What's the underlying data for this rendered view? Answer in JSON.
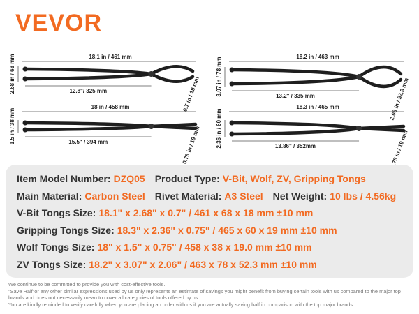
{
  "brand": "VEVOR",
  "tongs": [
    {
      "length": "18.1 in / 461 mm",
      "width": "2.68 in / 68 mm",
      "handle": "12.8\"/ 325 mm",
      "jaw": "0.7 in / 18 mm"
    },
    {
      "length": "18.2 in / 463 mm",
      "width": "3.07 in / 78 mm",
      "handle": "13.2\" / 335 mm",
      "jaw": "2.06 in / 52.3 mm"
    },
    {
      "length": "18 in / 458 mm",
      "width": "1.5 in / 38 mm",
      "handle": "15.5\" / 394 mm",
      "jaw": "0.75 in / 19 mm"
    },
    {
      "length": "18.3 in / 465 mm",
      "width": "2.36 in / 60 mm",
      "handle": "13.86\" / 352mm",
      "jaw": "0.75 in / 19 mm"
    }
  ],
  "specs": {
    "rows": [
      [
        {
          "label": "Item Model Number:",
          "value": "DZQ05"
        },
        {
          "label": "Product Type:",
          "value": "V-Bit, Wolf, ZV, Gripping Tongs"
        }
      ],
      [
        {
          "label": "Main Material:",
          "value": "Carbon Steel"
        },
        {
          "label": "Rivet Material:",
          "value": "A3 Steel"
        },
        {
          "label": "Net Weight:",
          "value": "10 lbs / 4.56kg"
        }
      ],
      [
        {
          "label": "V-Bit Tongs Size:",
          "value": "18.1\" x 2.68\" x 0.7\" / 461 x 68 x 18 mm ±10 mm"
        }
      ],
      [
        {
          "label": "Gripping Tongs Size:",
          "value": "18.3\" x 2.36\" x 0.75\" / 465 x 60 x 19 mm ±10 mm"
        }
      ],
      [
        {
          "label": "Wolf Tongs Size:",
          "value": "18\" x 1.5\" x 0.75\" / 458 x 38 x 19.0 mm ±10 mm"
        }
      ],
      [
        {
          "label": "ZV Tongs Size:",
          "value": "18.2\" x 3.07\" x 2.06\" / 463 x 78 x 52.3 mm ±10 mm"
        }
      ]
    ]
  },
  "footer": [
    "We continue to be committed to provide you with cost-effective tools.",
    "\"Save Half\"or any other similar expressions used by us only represents an estimate of savings you might benefit from buying certain tools with us compared to the major top brands and does not necessarily mean to cover all categories of tools offered by us.",
    "You are kindly reminded to verify carefully when you are placing an order with us if you are actually saving half in comparison with the top major brands."
  ]
}
